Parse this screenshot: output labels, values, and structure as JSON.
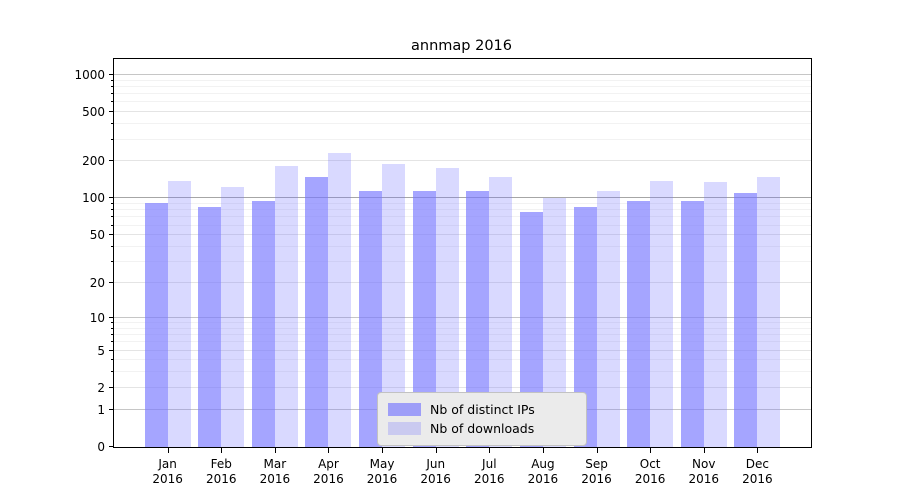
{
  "chart_data": {
    "type": "bar",
    "title": "annmap 2016",
    "categories": [
      "Jan 2016",
      "Feb 2016",
      "Mar 2016",
      "Apr 2016",
      "May 2016",
      "Jun 2016",
      "Jul 2016",
      "Aug 2016",
      "Sep 2016",
      "Oct 2016",
      "Nov 2016",
      "Dec 2016"
    ],
    "month_labels": [
      "Jan",
      "Feb",
      "Mar",
      "Apr",
      "May",
      "Jun",
      "Jul",
      "Aug",
      "Sep",
      "Oct",
      "Nov",
      "Dec"
    ],
    "year_label": "2016",
    "series": [
      {
        "name": "Nb of distinct IPs",
        "color": "#7777ff",
        "fill_alpha": 0.66,
        "values": [
          92,
          85,
          95,
          150,
          115,
          114,
          115,
          78,
          85,
          95,
          96,
          111
        ]
      },
      {
        "name": "Nb of downloads",
        "color": "#7777ff",
        "fill_alpha": 0.28,
        "values": [
          140,
          125,
          183,
          233,
          190,
          178,
          150,
          100,
          115,
          140,
          136,
          150
        ]
      }
    ],
    "y_axis": {
      "scale": "log1p",
      "ticks": [
        1000,
        500,
        200,
        100,
        50,
        20,
        10,
        5,
        2,
        1,
        0
      ],
      "minor_ticks": [
        3,
        4,
        6,
        7,
        8,
        9,
        30,
        40,
        60,
        70,
        80,
        90,
        300,
        400,
        600,
        700,
        800,
        900
      ],
      "ylim": [
        0,
        1340
      ],
      "emphasized_gridline": 100
    },
    "legend": {
      "position": "lower center",
      "entries": [
        "Nb of distinct IPs",
        "Nb of downloads"
      ]
    },
    "grid": true
  }
}
